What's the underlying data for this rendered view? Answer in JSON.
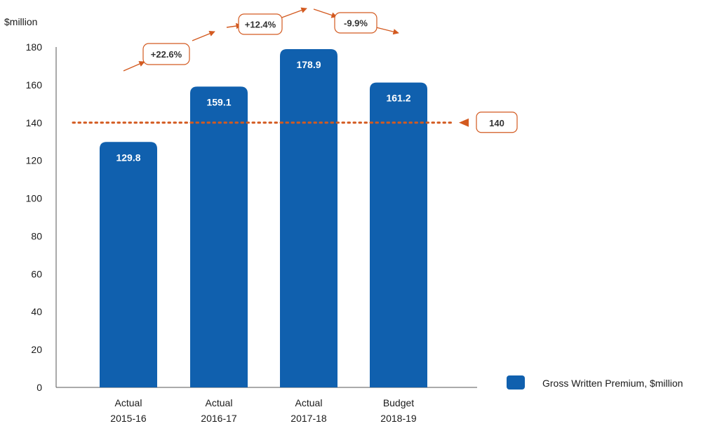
{
  "chart_data": {
    "type": "bar",
    "unit_label": "$million",
    "categories": [
      {
        "line1": "Actual",
        "line2": "2015-16"
      },
      {
        "line1": "Actual",
        "line2": "2016-17"
      },
      {
        "line1": "Actual",
        "line2": "2017-18"
      },
      {
        "line1": "Budget",
        "line2": "2018-19"
      }
    ],
    "series": [
      {
        "name": "Gross Written Premium, $million",
        "values": [
          129.8,
          159.1,
          178.9,
          161.2
        ],
        "labels": [
          "129.8",
          "159.1",
          "178.9",
          "161.2"
        ]
      }
    ],
    "ylim": [
      0,
      180
    ],
    "yticks": [
      0,
      20,
      40,
      60,
      80,
      100,
      120,
      140,
      160,
      180
    ],
    "reference_line": {
      "value": 140,
      "label": "140"
    },
    "growth_annotations": [
      "+22.6%",
      "+12.4%",
      "-9.9%"
    ],
    "legend_position": "bottom-right",
    "grid": false,
    "colors": {
      "bar": "#1060ae",
      "accent": "#d35a20",
      "axis": "#555555"
    }
  }
}
